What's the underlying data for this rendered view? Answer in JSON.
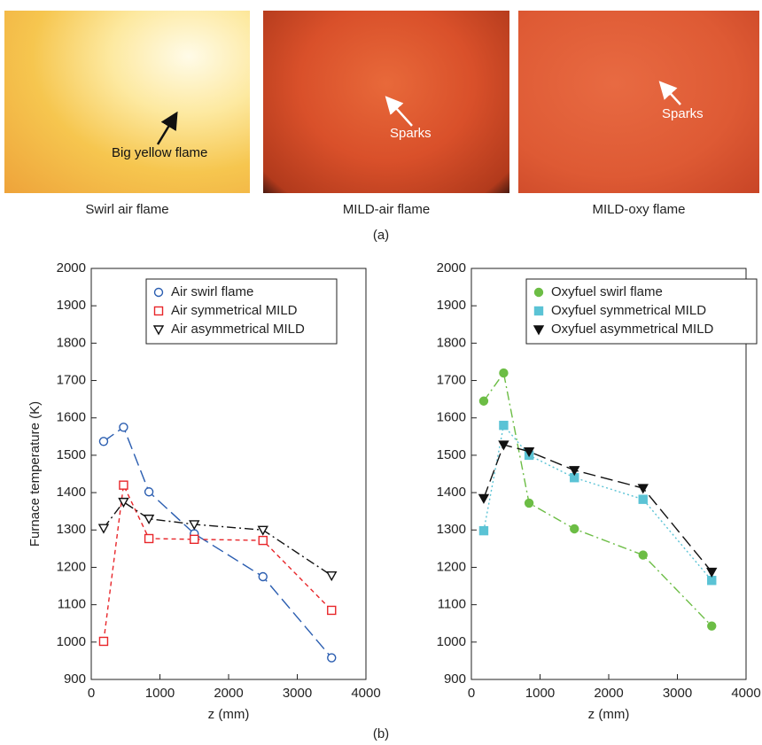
{
  "panel_a": {
    "photos": [
      {
        "caption": "Swirl air flame",
        "annotation": "Big yellow flame"
      },
      {
        "caption": "MILD-air flame",
        "annotation": "Sparks"
      },
      {
        "caption": "MILD-oxy flame",
        "annotation": "Sparks"
      }
    ],
    "label": "(a)"
  },
  "panel_b_label": "(b)",
  "chart_data": [
    {
      "type": "line",
      "ylabel": "Furnace temperature (K)",
      "xlabel": "z (mm)",
      "x": [
        180,
        470,
        840,
        1500,
        2500,
        3500
      ],
      "xlim": [
        0,
        4000
      ],
      "xticks": [
        0,
        1000,
        2000,
        3000,
        4000
      ],
      "ylim": [
        900,
        2000
      ],
      "yticks": [
        900,
        1000,
        1100,
        1200,
        1300,
        1400,
        1500,
        1600,
        1700,
        1800,
        1900,
        2000
      ],
      "legend": "upper left",
      "series": [
        {
          "name": "Air swirl flame",
          "color": "#2a5db0",
          "marker": "circle",
          "filled": false,
          "dash": "long",
          "values": [
            1537,
            1575,
            1402,
            1290,
            1175,
            958
          ]
        },
        {
          "name": "Air symmetrical MILD",
          "color": "#e8262a",
          "marker": "square",
          "filled": false,
          "dash": "short",
          "values": [
            1002,
            1420,
            1277,
            1275,
            1272,
            1085
          ]
        },
        {
          "name": "Air asymmetrical MILD",
          "color": "#111111",
          "marker": "triangle-down",
          "filled": false,
          "dash": "dashdot",
          "values": [
            1305,
            1375,
            1330,
            1315,
            1300,
            1178
          ]
        }
      ]
    },
    {
      "type": "line",
      "xlabel": "z (mm)",
      "x": [
        180,
        470,
        840,
        1500,
        2500,
        3500
      ],
      "xlim": [
        0,
        4000
      ],
      "xticks": [
        0,
        1000,
        2000,
        3000,
        4000
      ],
      "ylim": [
        900,
        2000
      ],
      "yticks": [
        900,
        1000,
        1100,
        1200,
        1300,
        1400,
        1500,
        1600,
        1700,
        1800,
        1900,
        2000
      ],
      "legend": "upper left",
      "series": [
        {
          "name": "Oxyfuel swirl flame",
          "color": "#6cbd45",
          "marker": "circle",
          "filled": true,
          "dash": "dashdot",
          "values": [
            1645,
            1720,
            1372,
            1303,
            1233,
            1043
          ]
        },
        {
          "name": "Oxyfuel symmetrical MILD",
          "color": "#5bc3d5",
          "marker": "square",
          "filled": true,
          "dash": "dot",
          "values": [
            1298,
            1580,
            1500,
            1440,
            1382,
            1165
          ]
        },
        {
          "name": "Oxyfuel asymmetrical MILD",
          "color": "#111111",
          "marker": "triangle-down",
          "filled": true,
          "dash": "long",
          "values": [
            1385,
            1528,
            1510,
            1460,
            1412,
            1188
          ]
        }
      ]
    }
  ]
}
